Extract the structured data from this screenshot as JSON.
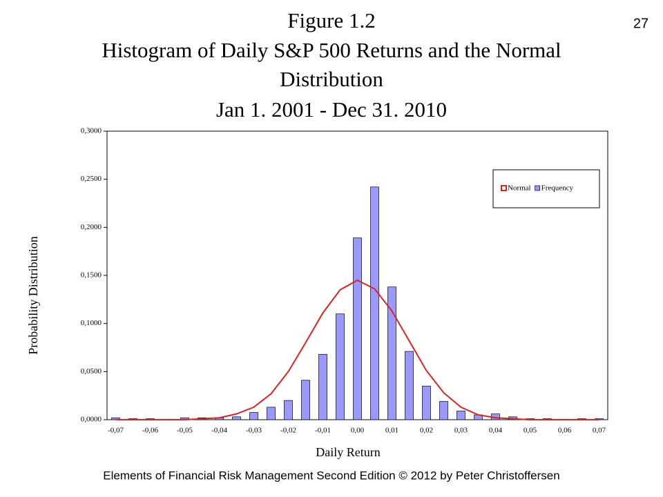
{
  "slide": {
    "page_number": "27",
    "footer": "Elements of Financial Risk Management Second Edition © 2012  by Peter Christoffersen"
  },
  "chart_data": {
    "type": "bar",
    "title": "Figure 1.2",
    "subtitle": [
      "Histogram of Daily S&P 500 Returns and the Normal",
      "Distribution",
      "Jan 1. 2001 - Dec 31. 2010"
    ],
    "x_label": "Daily Return",
    "y_label": "Probability Distribution",
    "categories": [
      "-0,07",
      null,
      "-0,06",
      null,
      "-0,05",
      null,
      "-0,04",
      null,
      "-0,03",
      null,
      "-0,02",
      null,
      "-0,01",
      null,
      "0,00",
      null,
      "0,01",
      null,
      "0,02",
      null,
      "0,03",
      null,
      "0,04",
      null,
      "0,05",
      null,
      "0,06",
      null,
      "0,07"
    ],
    "series": [
      {
        "name": "Normal",
        "type": "line",
        "color": "#e0201c",
        "values": [
          0,
          0,
          0,
          0,
          0,
          0.001,
          0.002,
          0.006,
          0.013,
          0.027,
          0.05,
          0.08,
          0.111,
          0.135,
          0.145,
          0.136,
          0.113,
          0.082,
          0.051,
          0.028,
          0.013,
          0.005,
          0.002,
          0.001,
          0,
          0,
          0,
          0,
          0
        ]
      },
      {
        "name": "Frequency",
        "type": "bar",
        "color": "#9999ff",
        "values": [
          0.002,
          0.001,
          0.001,
          0.0005,
          0.002,
          0.002,
          0.002,
          0.003,
          0.0075,
          0.013,
          0.02,
          0.041,
          0.068,
          0.11,
          0.189,
          0.242,
          0.138,
          0.071,
          0.035,
          0.019,
          0.009,
          0.005,
          0.006,
          0.003,
          0.001,
          0.001,
          0.0005,
          0.001,
          0.001
        ]
      }
    ],
    "ylim": [
      0,
      0.3
    ],
    "yticks": [
      {
        "value": 0,
        "label": "0,0000"
      },
      {
        "value": 0.05,
        "label": "0,0500"
      },
      {
        "value": 0.1,
        "label": "0,1000"
      },
      {
        "value": 0.15,
        "label": "0,1500"
      },
      {
        "value": 0.2,
        "label": "0,2000"
      },
      {
        "value": 0.25,
        "label": "0,2500"
      },
      {
        "value": 0.3,
        "label": "0,3000"
      }
    ],
    "legend": "upper right"
  }
}
